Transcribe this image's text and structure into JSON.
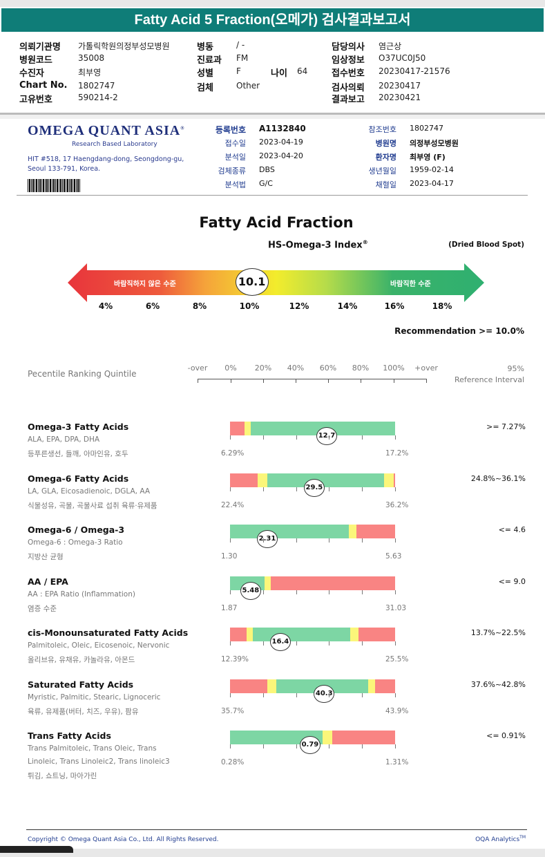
{
  "title": "Fatty Acid 5 Fraction(오메가) 검사결과보고서",
  "header": {
    "col1": [
      [
        "의뢰기관명",
        "가톨릭학원의정부성모병원"
      ],
      [
        "병원코드",
        "35008"
      ],
      [
        "수진자",
        "최부영"
      ],
      [
        "Chart No.",
        "1802747"
      ],
      [
        "고유번호",
        "590214-2"
      ]
    ],
    "col2": [
      [
        "병동",
        "/ -"
      ],
      [
        "진료과",
        "FM"
      ],
      [
        "성별",
        "F"
      ],
      [
        "검체",
        "Other"
      ]
    ],
    "age": [
      "나이",
      "64"
    ],
    "col3": [
      [
        "담당의사",
        "염근상"
      ],
      [
        "임상정보",
        "O37UC0J50"
      ],
      [
        "접수번호",
        "20230417-21576"
      ],
      [
        "검사의뢰",
        "20230417"
      ],
      [
        "결과보고",
        "20230421"
      ]
    ]
  },
  "lab": {
    "name": "OMEGA QUANT ASIA",
    "reg": "®",
    "tagline": "Research Based Laboratory",
    "address1": "HIT #518, 17 Haengdang-dong, Seongdong-gu,",
    "address2": "Seoul 133-791, Korea."
  },
  "info_left": [
    [
      "등록번호",
      "A1132840"
    ],
    [
      "접수일",
      "2023-04-19"
    ],
    [
      "분석일",
      "2023-04-20"
    ],
    [
      "검체종류",
      "DBS"
    ],
    [
      "분석법",
      "G/C"
    ]
  ],
  "info_right": [
    [
      "참조번호",
      "1802747"
    ],
    [
      "병원명",
      "의정부성모병원"
    ],
    [
      "환자명",
      "최부영 (F)"
    ],
    [
      "생년월일",
      "1959-02-14"
    ],
    [
      "채혈일",
      "2023-04-17"
    ]
  ],
  "main_title": "Fatty Acid Fraction",
  "index": {
    "title": "HS-Omega-3 Index",
    "sup": "®",
    "specimen": "(Dried Blood Spot)",
    "value": "10.1",
    "value_num": 10.1,
    "left_label": "바람직하지 않은 수준",
    "right_label": "바람직한 수준",
    "ticks": [
      "4%",
      "6%",
      "8%",
      "10%",
      "12%",
      "14%",
      "16%",
      "18%"
    ],
    "recommendation": "Recommendation  >= 10.0%"
  },
  "ranking": {
    "label": "Pecentile Ranking Quintile",
    "scale": [
      "-over",
      "0%",
      "20%",
      "40%",
      "60%",
      "80%",
      "100%",
      "+over"
    ],
    "ref1": "95%",
    "ref2": "Reference Interval"
  },
  "colors": {
    "red": "#f98483",
    "yellow": "#fbf67a",
    "green": "#7dd6a4",
    "teal": "#0f7d78"
  },
  "rows": [
    {
      "title": "Omega-3 Fatty Acids",
      "sub": "ALA, EPA, DPA, DHA",
      "food": "등푸른생선, 들깨, 아마인유, 호두",
      "min": "6.29%",
      "max": "17.2%",
      "value": "12.7",
      "pos": 58.6,
      "ref": ">= 7.27%",
      "segs": [
        [
          "red",
          0,
          8.8
        ],
        [
          "yellow",
          8.8,
          12.5
        ],
        [
          "green",
          12.5,
          100
        ]
      ]
    },
    {
      "title": "Omega-6 Fatty Acids",
      "sub": "LA, GLA, Eicosadienoic, DGLA, AA",
      "food": "식물성유, 곡물, 곡물사료 섭취 육류·유제품",
      "min": "22.4%",
      "max": "36.2%",
      "value": "29.5",
      "pos": 51,
      "ref": "24.8%~36.1%",
      "segs": [
        [
          "red",
          0,
          16.7
        ],
        [
          "yellow",
          16.7,
          22.6
        ],
        [
          "green",
          22.6,
          93.3
        ],
        [
          "yellow",
          93.3,
          99.2
        ],
        [
          "red",
          99.2,
          100
        ]
      ]
    },
    {
      "title": "Omega-6 / Omega-3",
      "sub": "Omega-6 : Omega-3 Ratio",
      "food": "지방산 균형",
      "min": "1.30",
      "max": "5.63",
      "value": "2.31",
      "pos": 22.6,
      "ref": "<= 4.6",
      "segs": [
        [
          "green",
          0,
          72
        ],
        [
          "yellow",
          72,
          76.6
        ],
        [
          "red",
          76.6,
          100
        ]
      ]
    },
    {
      "title": "AA / EPA",
      "sub": "AA : EPA Ratio (Inflammation)",
      "food": "염증 수준",
      "min": "1.87",
      "max": "31.03",
      "value": "5.48",
      "pos": 12.5,
      "ref": "<= 9.0",
      "segs": [
        [
          "green",
          0,
          21
        ],
        [
          "yellow",
          21,
          24.7
        ],
        [
          "red",
          24.7,
          100
        ]
      ]
    },
    {
      "title": "cis-Monounsaturated Fatty Acids",
      "sub": "Palmitoleic, Oleic, Eicosenoic, Nervonic",
      "food": "올리브유, 유채유, 카놀라유, 아몬드",
      "min": "12.39%",
      "max": "25.5%",
      "value": "16.4",
      "pos": 30.5,
      "ref": "13.7%~22.5%",
      "segs": [
        [
          "red",
          0,
          10
        ],
        [
          "yellow",
          10,
          13.8
        ],
        [
          "green",
          13.8,
          72.8
        ],
        [
          "yellow",
          72.8,
          77.8
        ],
        [
          "red",
          77.8,
          100
        ]
      ]
    },
    {
      "title": "Saturated Fatty Acids",
      "sub": "Myristic, Palmitic, Stearic, Lignoceric",
      "food": "육류, 유제품(버터, 치즈, 우유), 팜유",
      "min": "35.7%",
      "max": "43.9%",
      "value": "40.3",
      "pos": 57,
      "ref": "37.6%~42.8%",
      "segs": [
        [
          "red",
          0,
          22.6
        ],
        [
          "yellow",
          22.6,
          28
        ],
        [
          "green",
          28,
          83.7
        ],
        [
          "yellow",
          83.7,
          87.9
        ],
        [
          "red",
          87.9,
          100
        ]
      ]
    },
    {
      "title": "Trans Fatty Acids",
      "sub": "Trans Palmitoleic, Trans Oleic, Trans",
      "sub2": "Linoleic, Trans Linoleic2, Trans linoleic3",
      "food": "튀김, 쇼트닝, 마아가린",
      "min": "0.28%",
      "max": "1.31%",
      "value": "0.79",
      "pos": 48.5,
      "ref": "<= 0.91%",
      "segs": [
        [
          "green",
          0,
          56
        ],
        [
          "yellow",
          56,
          61.9
        ],
        [
          "red",
          61.9,
          100
        ]
      ]
    }
  ],
  "footer": {
    "copyright": "Copyright © Omega Quant Asia Co., Ltd.  All Rights Reserved.",
    "brand": "OQA Analytics",
    "tm": "TM"
  }
}
